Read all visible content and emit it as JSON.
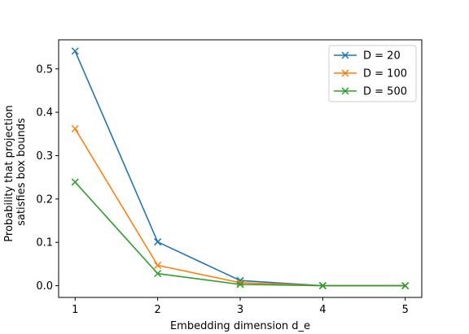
{
  "chart_data": {
    "type": "line",
    "title": "",
    "xlabel": "Embedding dimension d_e",
    "ylabel_lines": [
      "Probability that projection",
      "satisfies box bounds"
    ],
    "x": [
      1,
      2,
      3,
      4,
      5
    ],
    "xticks": [
      "1",
      "2",
      "3",
      "4",
      "5"
    ],
    "yticks": [
      "0.0",
      "0.1",
      "0.2",
      "0.3",
      "0.4",
      "0.5"
    ],
    "xlim": [
      0.8,
      5.2
    ],
    "ylim": [
      -0.027,
      0.567
    ],
    "grid": false,
    "legend_position": "top-right",
    "marker": "x",
    "series": [
      {
        "name": "D = 20",
        "color": "#1f77b4",
        "values": [
          0.541,
          0.101,
          0.012,
          0.0,
          0.0
        ]
      },
      {
        "name": "D = 100",
        "color": "#ff7f0e",
        "values": [
          0.362,
          0.047,
          0.007,
          0.0,
          0.0
        ]
      },
      {
        "name": "D = 500",
        "color": "#2ca02c",
        "values": [
          0.239,
          0.028,
          0.003,
          0.0,
          0.0
        ]
      }
    ]
  }
}
